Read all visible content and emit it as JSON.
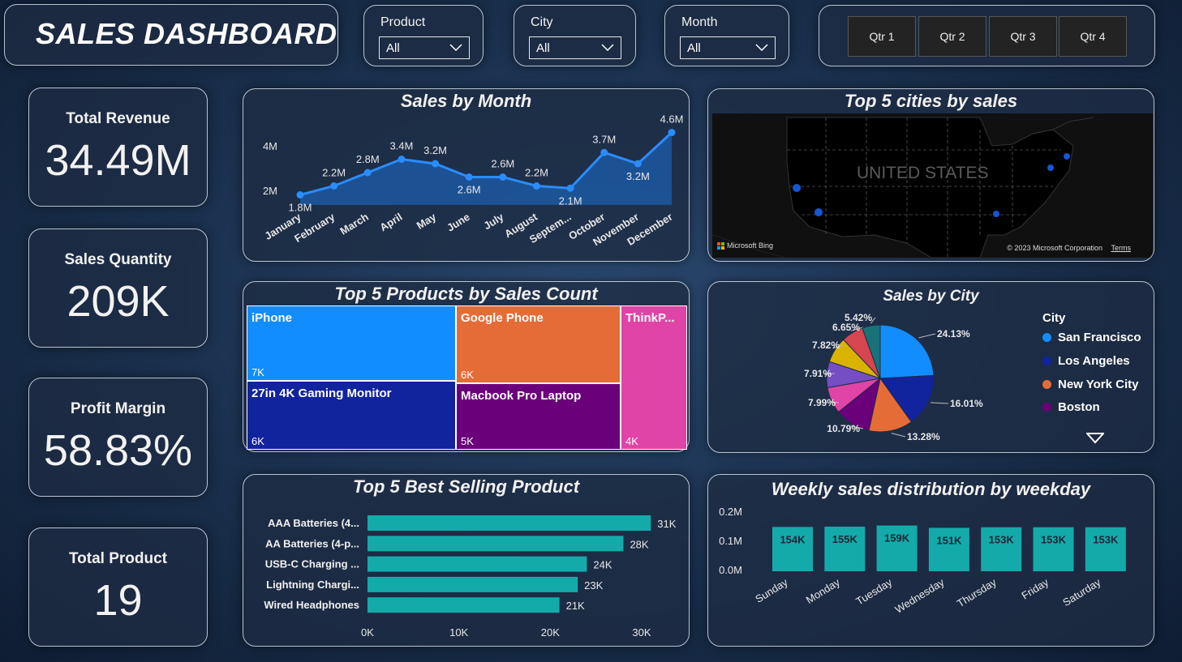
{
  "header": {
    "title": "SALES DASHBOARD"
  },
  "filters": {
    "product": {
      "label": "Product",
      "value": "All"
    },
    "city": {
      "label": "City",
      "value": "All"
    },
    "month": {
      "label": "Month",
      "value": "All"
    }
  },
  "quarters": [
    "Qtr 1",
    "Qtr 2",
    "Qtr 3",
    "Qtr 4"
  ],
  "kpis": [
    {
      "label": "Total Revenue",
      "value": "34.49M"
    },
    {
      "label": "Sales Quantity",
      "value": "209K"
    },
    {
      "label": "Profit Margin",
      "value": "58.83%"
    },
    {
      "label": "Total Product",
      "value": "19"
    }
  ],
  "map": {
    "title": "Top 5 cities by sales",
    "country_label": "UNITED STATES",
    "bing": "Microsoft Bing",
    "copyright": "© 2023 Microsoft Corporation",
    "terms": "Terms"
  },
  "colors": {
    "accent": "#1e90ff",
    "teal": "#14aaaa",
    "line": "#2a8cff"
  },
  "chart_data": [
    {
      "id": "sales_by_month",
      "type": "area",
      "title": "Sales by Month",
      "categories": [
        "January",
        "February",
        "March",
        "April",
        "May",
        "June",
        "July",
        "August",
        "Septem...",
        "October",
        "November",
        "December"
      ],
      "values": [
        1.8,
        2.2,
        2.8,
        3.4,
        3.2,
        2.6,
        2.6,
        2.2,
        2.1,
        3.7,
        3.2,
        4.6
      ],
      "labels": [
        "1.8M",
        "2.2M",
        "2.8M",
        "3.4M",
        "3.2M",
        "2.6M",
        "2.6M",
        "2.2M",
        "2.1M",
        "3.7M",
        "3.2M",
        "4.6M"
      ],
      "yticks": [
        "2M",
        "4M"
      ],
      "ylim": [
        0.9,
        4.7
      ]
    },
    {
      "id": "top5_products_count",
      "type": "treemap",
      "title": "Top 5 Products by Sales Count",
      "items": [
        {
          "name": "iPhone",
          "value": "7K",
          "color": "#118dff"
        },
        {
          "name": "Google Phone",
          "value": "6K",
          "color": "#e66c37"
        },
        {
          "name": "ThinkP...",
          "value": "4K",
          "color": "#e044a7"
        },
        {
          "name": "27in 4K Gaming Monitor",
          "value": "6K",
          "color": "#12239e"
        },
        {
          "name": "Macbook Pro Laptop",
          "value": "5K",
          "color": "#6b007b"
        }
      ]
    },
    {
      "id": "top5_best_selling",
      "type": "bar",
      "orientation": "horizontal",
      "title": "Top 5 Best Selling Product",
      "categories": [
        "AAA Batteries (4...",
        "AA Batteries (4-p...",
        "USB-C Charging ...",
        "Lightning Chargi...",
        "Wired Headphones"
      ],
      "values": [
        31,
        28,
        24,
        23,
        21
      ],
      "labels": [
        "31K",
        "28K",
        "24K",
        "23K",
        "21K"
      ],
      "xticks": [
        "0K",
        "10K",
        "20K",
        "30K"
      ],
      "xlim": [
        0,
        30
      ]
    },
    {
      "id": "sales_by_city",
      "type": "pie",
      "title": "Sales by City",
      "legend_title": "City",
      "legend": [
        "San Francisco",
        "Los Angeles",
        "New York City",
        "Boston"
      ],
      "slices": [
        {
          "label": "24.13%",
          "value": 24.13,
          "color": "#118dff"
        },
        {
          "label": "16.01%",
          "value": 16.01,
          "color": "#12239e"
        },
        {
          "label": "13.28%",
          "value": 13.28,
          "color": "#e66c37"
        },
        {
          "label": "10.79%",
          "value": 10.79,
          "color": "#6b007b"
        },
        {
          "label": "7.99%",
          "value": 7.99,
          "color": "#e044a7"
        },
        {
          "label": "7.91%",
          "value": 7.91,
          "color": "#744ec2"
        },
        {
          "label": "7.82%",
          "value": 7.82,
          "color": "#d9b300"
        },
        {
          "label": "6.65%",
          "value": 6.65,
          "color": "#d64550"
        },
        {
          "label": "5.42%",
          "value": 5.42,
          "color": "#197278"
        }
      ]
    },
    {
      "id": "weekly_sales",
      "type": "bar",
      "title": "Weekly sales distribution by weekday",
      "categories": [
        "Sunday",
        "Monday",
        "Tuesday",
        "Wednesday",
        "Thursday",
        "Friday",
        "Saturday"
      ],
      "values": [
        154,
        155,
        159,
        151,
        153,
        153,
        153
      ],
      "labels": [
        "154K",
        "155K",
        "159K",
        "151K",
        "153K",
        "153K",
        "153K"
      ],
      "yticks": [
        "0.2M",
        "0.1M",
        "0.0M"
      ]
    }
  ]
}
